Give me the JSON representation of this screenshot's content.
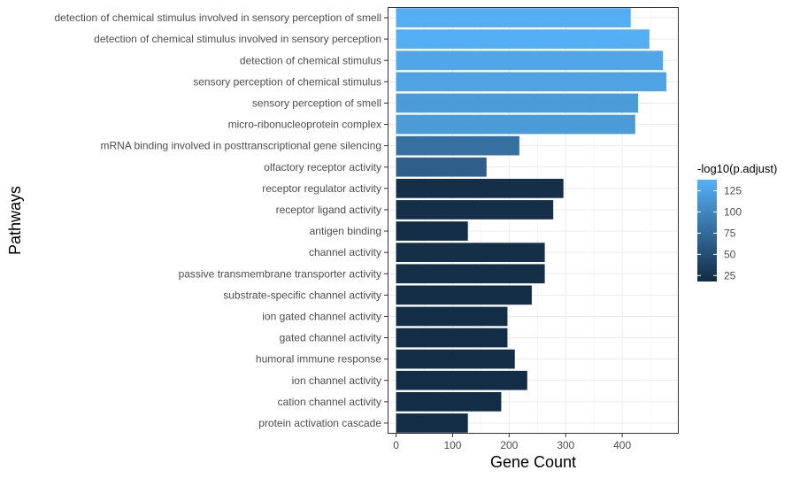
{
  "chart_data": {
    "type": "bar",
    "orientation": "horizontal",
    "xlabel": "Gene Count",
    "ylabel": "Pathways",
    "xlim": [
      -15,
      500
    ],
    "xticks": [
      0,
      100,
      200,
      300,
      400
    ],
    "grid": true,
    "legend": {
      "title": "-log10(p.adjust)",
      "placement": "right",
      "range": [
        18,
        138
      ],
      "ticks": [
        25,
        50,
        75,
        100,
        125
      ],
      "color_low": "#132B43",
      "color_high": "#56B1F7"
    },
    "categories": [
      "detection of chemical stimulus involved in sensory perception of smell",
      "detection of chemical stimulus involved in sensory perception",
      "detection of chemical stimulus",
      "sensory perception of chemical stimulus",
      "sensory perception of smell",
      "micro-ribonucleoprotein complex",
      "mRNA binding involved in posttranscriptional gene silencing",
      "olfactory receptor activity",
      "receptor regulator activity",
      "receptor ligand activity",
      "antigen binding",
      "channel activity",
      "passive transmembrane transporter activity",
      "substrate-specific channel activity",
      "ion gated channel activity",
      "gated channel activity",
      "humoral immune response",
      "ion channel activity",
      "cation channel activity",
      "protein activation cascade"
    ],
    "values": [
      415,
      448,
      472,
      478,
      428,
      423,
      218,
      160,
      296,
      278,
      127,
      263,
      263,
      240,
      197,
      197,
      210,
      232,
      186,
      127
    ],
    "color_values": [
      135,
      135,
      128,
      125,
      118,
      118,
      80,
      65,
      22,
      22,
      20,
      22,
      22,
      20,
      20,
      20,
      20,
      20,
      20,
      20
    ]
  }
}
